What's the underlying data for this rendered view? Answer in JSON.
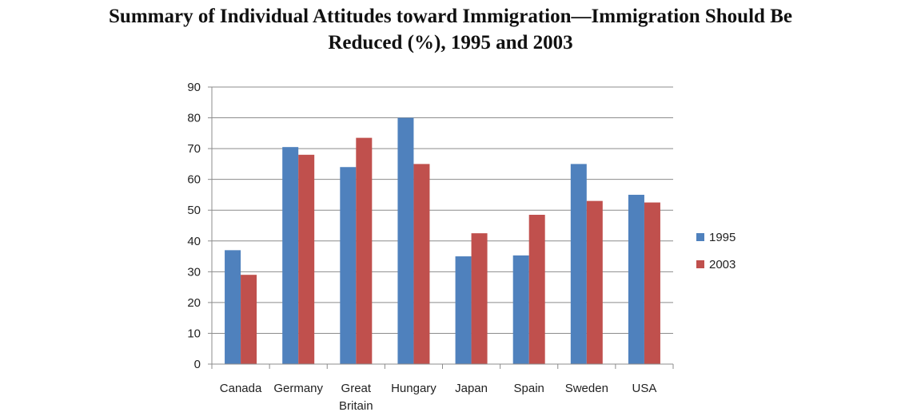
{
  "chart_data": {
    "type": "bar",
    "title_lines": [
      "Summary of Individual Attitudes toward Immigration—Immigration Should Be",
      "Reduced (%), 1995 and 2003"
    ],
    "xlabel": "",
    "ylabel": "",
    "ylim": [
      0,
      90
    ],
    "yticks": [
      0,
      10,
      20,
      30,
      40,
      50,
      60,
      70,
      80,
      90
    ],
    "grid": true,
    "legend_position": "right",
    "categories": [
      [
        "Canada"
      ],
      [
        "Germany"
      ],
      [
        "Great",
        "Britain"
      ],
      [
        "Hungary"
      ],
      [
        "Japan"
      ],
      [
        "Spain"
      ],
      [
        "Sweden"
      ],
      [
        "USA"
      ]
    ],
    "series": [
      {
        "name": "1995",
        "color": "#4f81bd",
        "values": [
          37,
          70.5,
          64,
          80,
          35,
          35.3,
          65,
          55
        ]
      },
      {
        "name": "2003",
        "color": "#c0504d",
        "values": [
          29,
          68,
          73.5,
          65,
          42.5,
          48.5,
          53,
          52.5
        ]
      }
    ]
  }
}
